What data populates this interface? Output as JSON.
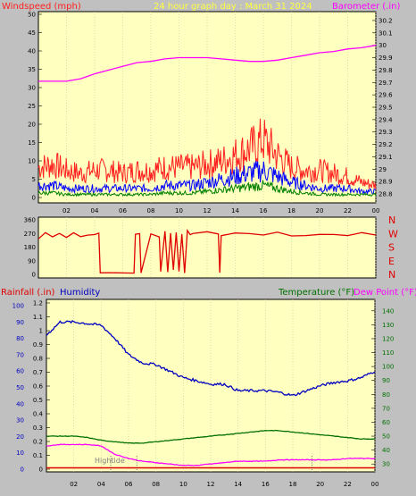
{
  "header": {
    "left_label": "Windspeed (mph)",
    "center_title": "24 hour graph day : March 31 2024",
    "right_label": "Barometer (.in)"
  },
  "lower_header": {
    "rainfall_label": "Rainfall (.in)",
    "humidity_label": "Humidity",
    "temperature_label": "Temperature (°F)",
    "dewpoint_label": "Dew Point (°F)"
  },
  "hightide_label": "Hightide",
  "x_tick_labels": [
    "02",
    "04",
    "06",
    "08",
    "10",
    "12",
    "14",
    "16",
    "18",
    "20",
    "22",
    "00"
  ],
  "colors": {
    "panel_bg": "#ffffc0",
    "frame_bg": "#c0c0c0",
    "wind_gust": "#ff2020",
    "wind_avg": "#0000ff",
    "wind_low": "#008000",
    "barometer": "#ff00ff",
    "direction": "#e00000",
    "humidity": "#0000c0",
    "temperature": "#007000",
    "dewpoint": "#ff00ff",
    "rainfall": "#e00000"
  },
  "chart_data": [
    {
      "type": "line",
      "name_key": "wind",
      "x": [
        0,
        1,
        2,
        3,
        4,
        5,
        6,
        7,
        8,
        9,
        10,
        11,
        12,
        13,
        14,
        15,
        16,
        17,
        18,
        19,
        20,
        21,
        22,
        23,
        24
      ],
      "series": [
        {
          "name": "Windspeed (mph)",
          "values": [
            10,
            11,
            9,
            8,
            9,
            9,
            8,
            9,
            9,
            10,
            10,
            10,
            11,
            12,
            14,
            16,
            19,
            14,
            10,
            9,
            9,
            8,
            7,
            5,
            4
          ]
        },
        {
          "name": "",
          "values": [
            4,
            4,
            3,
            3,
            3,
            3,
            3,
            3,
            3,
            4,
            4,
            4,
            5,
            6,
            7,
            8,
            9,
            7,
            5,
            4,
            3,
            3,
            3,
            2,
            2
          ]
        },
        {
          "name": "",
          "values": [
            1.5,
            1.5,
            1,
            1,
            1,
            1,
            1,
            1,
            1,
            1.5,
            1.5,
            1.5,
            2,
            2.5,
            3,
            3.5,
            4,
            3,
            2,
            1.5,
            1,
            1,
            1,
            1,
            1
          ]
        },
        {
          "name": "Barometer (.in)",
          "values": [
            29.71,
            29.71,
            29.71,
            29.73,
            29.77,
            29.8,
            29.83,
            29.86,
            29.87,
            29.89,
            29.9,
            29.9,
            29.9,
            29.89,
            29.88,
            29.87,
            29.87,
            29.88,
            29.9,
            29.92,
            29.94,
            29.95,
            29.97,
            29.98,
            30.0
          ]
        }
      ],
      "y_left_range": [
        0,
        50
      ],
      "y_left_ticks": [
        0,
        5,
        10,
        15,
        20,
        25,
        30,
        35,
        40,
        45,
        50
      ],
      "y_right_range": [
        28.75,
        30.25
      ],
      "y_right_ticks": [
        "28.8",
        "28.9",
        "29",
        "29.1",
        "29.2",
        "29.3",
        "29.4",
        "29.5",
        "29.6",
        "29.7",
        "29.8",
        "29.9",
        "30",
        "30.1",
        "30.2"
      ],
      "x_range": [
        0,
        24
      ]
    },
    {
      "type": "line",
      "name_key": "direction",
      "x": [
        0,
        0.5,
        1,
        1.5,
        2,
        2.5,
        3,
        3.5,
        4,
        4.3,
        4.4,
        5,
        6,
        6.8,
        6.9,
        7.2,
        7.3,
        8,
        8.6,
        8.7,
        9,
        9.2,
        9.4,
        9.6,
        9.8,
        10,
        10.2,
        10.4,
        10.6,
        10.8,
        11,
        12,
        12.8,
        12.9,
        13,
        14,
        15,
        16,
        17,
        18,
        19,
        20,
        21,
        22,
        23,
        24
      ],
      "series": [
        {
          "name": "Wind direction",
          "values": [
            240,
            270,
            250,
            265,
            245,
            270,
            255,
            260,
            265,
            270,
            10,
            10,
            10,
            10,
            270,
            270,
            10,
            270,
            250,
            20,
            280,
            15,
            270,
            30,
            280,
            20,
            270,
            10,
            290,
            260,
            270,
            280,
            270,
            10,
            260,
            275,
            270,
            260,
            280,
            250,
            250,
            260,
            265,
            260,
            270,
            260
          ]
        }
      ],
      "y_left_range": [
        0,
        360
      ],
      "y_left_ticks": [
        0,
        90,
        180,
        270,
        360
      ],
      "y_right_labels": [
        "N",
        "W",
        "S",
        "E",
        "N"
      ],
      "x_range": [
        0,
        24
      ]
    },
    {
      "type": "line",
      "name_key": "lower",
      "x": [
        0,
        1,
        2,
        3,
        4,
        5,
        6,
        7,
        8,
        9,
        10,
        11,
        12,
        13,
        14,
        15,
        16,
        17,
        18,
        19,
        20,
        21,
        22,
        23,
        24
      ],
      "series": [
        {
          "name": "Humidity",
          "values": [
            82,
            90,
            90,
            89,
            88,
            80,
            70,
            65,
            64,
            60,
            56,
            54,
            52,
            52,
            48,
            48,
            48,
            47,
            45,
            48,
            51,
            53,
            54,
            56,
            60
          ]
        },
        {
          "name": "Temperature (°F)",
          "values": [
            50,
            50,
            50,
            49,
            47,
            46,
            45,
            45,
            46,
            47,
            48,
            49,
            50,
            51,
            52,
            53,
            54,
            54,
            53,
            52,
            51,
            50,
            49,
            48,
            48
          ]
        },
        {
          "name": "Dew Point (°F)",
          "values": [
            43,
            44,
            44,
            44,
            43,
            37,
            34,
            32,
            31,
            30,
            29,
            29,
            30,
            31,
            32,
            32,
            32,
            33,
            33,
            33,
            33,
            33,
            34,
            34,
            34
          ]
        },
        {
          "name": "Rainfall (.in)",
          "values": [
            0.01,
            0.01,
            0.01,
            0.01,
            0.01,
            0.01,
            0.01,
            0.01,
            0.01,
            0.01,
            0.01,
            0.01,
            0.01,
            0.01,
            0.01,
            0.01,
            0.01,
            0.01,
            0.01,
            0.01,
            0.01,
            0.01,
            0.01,
            0.01,
            0.01
          ]
        }
      ],
      "hightide_x": [
        4.7,
        6.6,
        19.4
      ],
      "y_left_ticks_humidity": [
        0,
        10,
        20,
        30,
        40,
        50,
        60,
        70,
        80,
        90,
        100
      ],
      "y_left_ticks_rain": [
        "0",
        "0.1",
        "0.2",
        "0.3",
        "0.4",
        "0.5",
        "0.6",
        "0.7",
        "0.8",
        "0.9",
        "1",
        "1.1",
        "1.2"
      ],
      "y_right_ticks": [
        30,
        40,
        50,
        60,
        70,
        80,
        90,
        100,
        110,
        120,
        130,
        140
      ],
      "y_right_range": [
        25,
        145
      ],
      "x_range": [
        0,
        24
      ]
    }
  ]
}
